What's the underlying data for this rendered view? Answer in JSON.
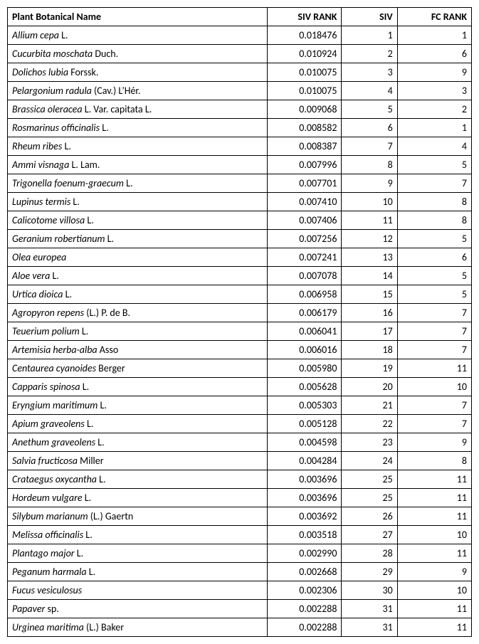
{
  "table": {
    "columns": [
      "Plant Botanical Name",
      "SIV RANK",
      "SIV",
      "FC RANK"
    ],
    "rows": [
      {
        "name_italic": "Allium cepa",
        "name_rest": " L.",
        "siv_rank": "0.018476",
        "siv": "1",
        "fc_rank": "1"
      },
      {
        "name_italic": "Cucurbita moschata",
        "name_rest": " Duch.",
        "siv_rank": "0.010924",
        "siv": "2",
        "fc_rank": "6"
      },
      {
        "name_italic": "Dolichos lubia",
        "name_rest": " Forssk.",
        "siv_rank": "0.010075",
        "siv": "3",
        "fc_rank": "9"
      },
      {
        "name_italic": "Pelargonium radula",
        "name_rest": " (Cav.) L’Hér.",
        "siv_rank": "0.010075",
        "siv": "4",
        "fc_rank": "3"
      },
      {
        "name_italic": "Brassica oleracea",
        "name_rest": " L. Var. capitata L.",
        "siv_rank": "0.009068",
        "siv": "5",
        "fc_rank": "2"
      },
      {
        "name_italic": "Rosmarinus officinalis",
        "name_rest": " L.",
        "siv_rank": "0.008582",
        "siv": "6",
        "fc_rank": "1"
      },
      {
        "name_italic": "Rheum ribes",
        "name_rest": " L.",
        "siv_rank": "0.008387",
        "siv": "7",
        "fc_rank": "4"
      },
      {
        "name_italic": "Ammi visnaga",
        "name_rest": " L. Lam.",
        "siv_rank": "0.007996",
        "siv": "8",
        "fc_rank": "5"
      },
      {
        "name_italic": "Trigonella foenum-graecum",
        "name_rest": " L.",
        "siv_rank": "0.007701",
        "siv": "9",
        "fc_rank": "7"
      },
      {
        "name_italic": "Lupinus termis",
        "name_rest": " L.",
        "siv_rank": "0.007410",
        "siv": "10",
        "fc_rank": "8"
      },
      {
        "name_italic": "Calicotome villosa",
        "name_rest": " L.",
        "siv_rank": "0.007406",
        "siv": "11",
        "fc_rank": "8"
      },
      {
        "name_italic": "Geranium robertianum",
        "name_rest": " L.",
        "siv_rank": "0.007256",
        "siv": "12",
        "fc_rank": "5"
      },
      {
        "name_italic": "Olea europea",
        "name_rest": "",
        "siv_rank": "0.007241",
        "siv": "13",
        "fc_rank": "6"
      },
      {
        "name_italic": "Aloe vera",
        "name_rest": " L.",
        "siv_rank": "0.007078",
        "siv": "14",
        "fc_rank": "5"
      },
      {
        "name_italic": "Urtica dioica",
        "name_rest": " L.",
        "siv_rank": "0.006958",
        "siv": "15",
        "fc_rank": "5"
      },
      {
        "name_italic": "Agropyron repens",
        "name_rest": " (L.) P. de B.",
        "siv_rank": "0.006179",
        "siv": "16",
        "fc_rank": "7"
      },
      {
        "name_italic": "Teuerium polium",
        "name_rest": " L.",
        "siv_rank": "0.006041",
        "siv": "17",
        "fc_rank": "7"
      },
      {
        "name_italic": "Artemisia herba-alba",
        "name_rest": " Asso",
        "siv_rank": "0.006016",
        "siv": "18",
        "fc_rank": "7"
      },
      {
        "name_italic": "Centaurea cyanoides",
        "name_rest": " Berger",
        "siv_rank": "0.005980",
        "siv": "19",
        "fc_rank": "11"
      },
      {
        "name_italic": "Capparis spinosa",
        "name_rest": " L.",
        "siv_rank": "0.005628",
        "siv": "20",
        "fc_rank": "10"
      },
      {
        "name_italic": "Eryngium maritimum",
        "name_rest": " L.",
        "siv_rank": "0.005303",
        "siv": "21",
        "fc_rank": "7"
      },
      {
        "name_italic": "Apium graveolens",
        "name_rest": " L.",
        "siv_rank": "0.005128",
        "siv": "22",
        "fc_rank": "7"
      },
      {
        "name_italic": "Anethum graveolens",
        "name_rest": " L.",
        "siv_rank": "0.004598",
        "siv": "23",
        "fc_rank": "9"
      },
      {
        "name_italic": "Salvia fructicosa",
        "name_rest": " Miller",
        "siv_rank": "0.004284",
        "siv": "24",
        "fc_rank": "8"
      },
      {
        "name_italic": "Crataegus oxycantha",
        "name_rest": " L.",
        "siv_rank": "0.003696",
        "siv": "25",
        "fc_rank": "11"
      },
      {
        "name_italic": "Hordeum vulgare",
        "name_rest": " L.",
        "siv_rank": "0.003696",
        "siv": "25",
        "fc_rank": "11"
      },
      {
        "name_italic": "Silybum marianum",
        "name_rest": " (L.) Gaertn",
        "siv_rank": "0.003692",
        "siv": "26",
        "fc_rank": "11"
      },
      {
        "name_italic": "Melissa officinalis",
        "name_rest": " L.",
        "siv_rank": "0.003518",
        "siv": "27",
        "fc_rank": "10"
      },
      {
        "name_italic": "Plantago major",
        "name_rest": " L.",
        "siv_rank": "0.002990",
        "siv": "28",
        "fc_rank": "11"
      },
      {
        "name_italic": "Peganum harmala",
        "name_rest": " L.",
        "siv_rank": "0.002668",
        "siv": "29",
        "fc_rank": "9"
      },
      {
        "name_italic": "Fucus vesiculosus",
        "name_rest": "",
        "siv_rank": "0.002306",
        "siv": "30",
        "fc_rank": "10"
      },
      {
        "name_italic": "Papaver",
        "name_rest": " sp.",
        "siv_rank": "0.002288",
        "siv": "31",
        "fc_rank": "11"
      },
      {
        "name_italic": "Urginea maritima",
        "name_rest": " (L.) Baker",
        "siv_rank": "0.002288",
        "siv": "31",
        "fc_rank": "11"
      }
    ]
  }
}
